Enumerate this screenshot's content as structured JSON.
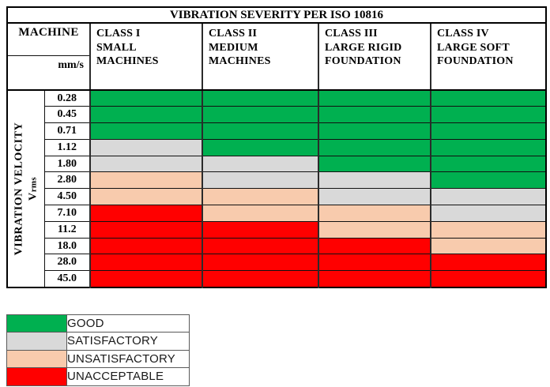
{
  "title": "VIBRATION SEVERITY PER ISO 10816",
  "header": {
    "machine_label": "MACHINE",
    "unit_label": "mm/s",
    "classes": [
      {
        "lines": [
          "CLASS I",
          "SMALL",
          "MACHINES"
        ]
      },
      {
        "lines": [
          "CLASS II",
          "MEDIUM",
          "MACHINES"
        ]
      },
      {
        "lines": [
          "CLASS III",
          "LARGE RIGID",
          "FOUNDATION"
        ]
      },
      {
        "lines": [
          "CLASS IV",
          "LARGE SOFT",
          "FOUNDATION"
        ]
      }
    ]
  },
  "axis": {
    "line1": "VIBRATION VELOCITY",
    "symbol": "V",
    "subscript": "rms"
  },
  "colors": {
    "good": "#00B050",
    "satisfactory": "#D9D9D9",
    "unsatisfactory": "#F8CBAD",
    "unacceptable": "#FF0000"
  },
  "legend": {
    "items": [
      {
        "key": "good",
        "label": "GOOD"
      },
      {
        "key": "satisfactory",
        "label": "SATISFACTORY"
      },
      {
        "key": "unsatisfactory",
        "label": "UNSATISFACTORY"
      },
      {
        "key": "unacceptable",
        "label": "UNACCEPTABLE"
      }
    ]
  },
  "chart_data": {
    "type": "heatmap",
    "title": "VIBRATION SEVERITY PER ISO 10816",
    "ylabel": "VIBRATION VELOCITY Vrms (mm/s)",
    "rows": [
      "0.28",
      "0.45",
      "0.71",
      "1.12",
      "1.80",
      "2.80",
      "4.50",
      "7.10",
      "11.2",
      "18.0",
      "28.0",
      "45.0"
    ],
    "columns": [
      "CLASS I SMALL MACHINES",
      "CLASS II MEDIUM MACHINES",
      "CLASS III LARGE RIGID FOUNDATION",
      "CLASS IV LARGE SOFT FOUNDATION"
    ],
    "severity": [
      [
        "good",
        "good",
        "good",
        "good"
      ],
      [
        "good",
        "good",
        "good",
        "good"
      ],
      [
        "good",
        "good",
        "good",
        "good"
      ],
      [
        "satisfactory",
        "good",
        "good",
        "good"
      ],
      [
        "satisfactory",
        "satisfactory",
        "good",
        "good"
      ],
      [
        "unsatisfactory",
        "satisfactory",
        "satisfactory",
        "good"
      ],
      [
        "unsatisfactory",
        "unsatisfactory",
        "satisfactory",
        "satisfactory"
      ],
      [
        "unacceptable",
        "unsatisfactory",
        "unsatisfactory",
        "satisfactory"
      ],
      [
        "unacceptable",
        "unacceptable",
        "unsatisfactory",
        "unsatisfactory"
      ],
      [
        "unacceptable",
        "unacceptable",
        "unacceptable",
        "unsatisfactory"
      ],
      [
        "unacceptable",
        "unacceptable",
        "unacceptable",
        "unacceptable"
      ],
      [
        "unacceptable",
        "unacceptable",
        "unacceptable",
        "unacceptable"
      ]
    ],
    "legend_entries": [
      "GOOD",
      "SATISFACTORY",
      "UNSATISFACTORY",
      "UNACCEPTABLE"
    ],
    "legend_position": "bottom-left"
  }
}
